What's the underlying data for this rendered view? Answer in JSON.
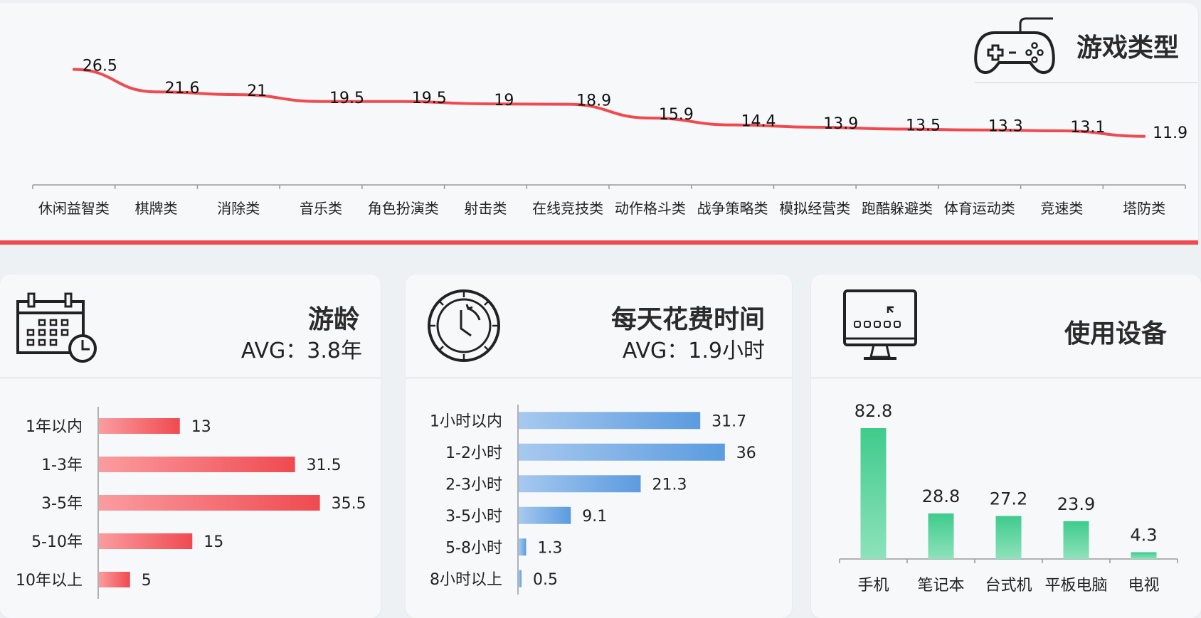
{
  "colors": {
    "red": "#ef4a50",
    "blue": "#5b9bdf",
    "green": "#3fcb8c"
  },
  "top": {
    "title": "游戏类型",
    "icon": "gamepad-icon",
    "chart_data": {
      "type": "line",
      "categories": [
        "休闲益智类",
        "棋牌类",
        "消除类",
        "音乐类",
        "角色扮演类",
        "射击类",
        "在线竞技类",
        "动作格斗类",
        "战争策略类",
        "模拟经营类",
        "跑酷躲避类",
        "体育运动类",
        "竞速类",
        "塔防类"
      ],
      "values": [
        26.5,
        21.6,
        21,
        19.5,
        19.5,
        19,
        18.9,
        15.9,
        14.4,
        13.9,
        13.5,
        13.3,
        13.1,
        11.9
      ],
      "ylim": [
        0,
        30
      ]
    }
  },
  "left": {
    "title": "游龄",
    "subtitle": "AVG：3.8年",
    "icon": "calendar-clock-icon",
    "chart_data": {
      "type": "bar",
      "orientation": "horizontal",
      "categories": [
        "1年以内",
        "1-3年",
        "3-5年",
        "5-10年",
        "10年以上"
      ],
      "values": [
        13,
        31.5,
        35.5,
        15,
        5
      ],
      "xlim": [
        0,
        40
      ]
    }
  },
  "mid": {
    "title": "每天花费时间",
    "subtitle": "AVG：1.9小时",
    "icon": "clock-icon",
    "chart_data": {
      "type": "bar",
      "orientation": "horizontal",
      "categories": [
        "1小时以内",
        "1-2小时",
        "2-3小时",
        "3-5小时",
        "5-8小时",
        "8小时以上"
      ],
      "values": [
        31.7,
        36,
        21.3,
        9.1,
        1.3,
        0.5
      ],
      "xlim": [
        0,
        40
      ]
    }
  },
  "right": {
    "title": "使用设备",
    "icon": "monitor-icon",
    "chart_data": {
      "type": "bar",
      "orientation": "vertical",
      "categories": [
        "手机",
        "笔记本",
        "台式机",
        "平板电脑",
        "电视"
      ],
      "values": [
        82.8,
        28.8,
        27.2,
        23.9,
        4.3
      ],
      "ylim": [
        0,
        90
      ]
    }
  }
}
